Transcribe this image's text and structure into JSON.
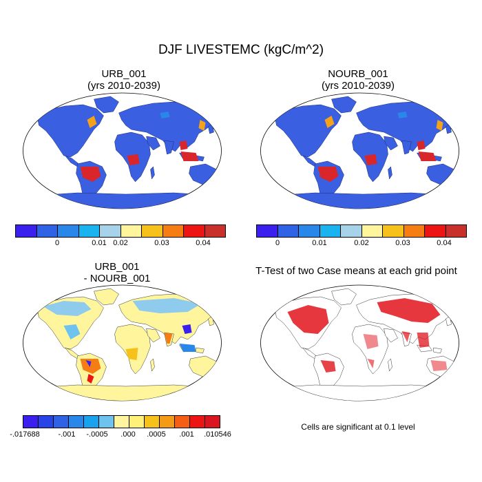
{
  "figure": {
    "title": "DJF LIVESTEMC (kgC/m^2)",
    "footnote": "Cells are significant at 0.1 level"
  },
  "panels": [
    {
      "id": "urb",
      "title_line1": "URB_001",
      "title_line2": "(yrs 2010-2039)"
    },
    {
      "id": "nourb",
      "title_line1": "NOURB_001",
      "title_line2": "(yrs 2010-2039)"
    },
    {
      "id": "diff",
      "title_line1": "URB_001",
      "title_line2": "- NOURB_001"
    },
    {
      "id": "ttest",
      "title_line1": "T-Test of two Case means at each grid point"
    }
  ],
  "colorbars": {
    "levels": {
      "colors": [
        "#3a1fef",
        "#2f62e4",
        "#2a87ea",
        "#19b4ef",
        "#a7d3ea",
        "#fff59d",
        "#f7c11b",
        "#f57d14",
        "#ed1414",
        "#c9302c"
      ],
      "labels": [
        "0",
        "0.01",
        "0.02",
        "0.03",
        "0.04"
      ]
    },
    "difference": {
      "colors": [
        "#3a1fef",
        "#2844e6",
        "#2f62e4",
        "#2a87ea",
        "#19a3ef",
        "#6ec2ee",
        "#fff59d",
        "#fff078",
        "#f7c11b",
        "#f59a14",
        "#f55f14",
        "#ed1414",
        "#d9161f"
      ],
      "labels": [
        ".017688",
        "-.001",
        "-.0005",
        ".000",
        ".0005",
        ".001",
        ".010546"
      ],
      "min_label_prefix": "-"
    }
  }
}
